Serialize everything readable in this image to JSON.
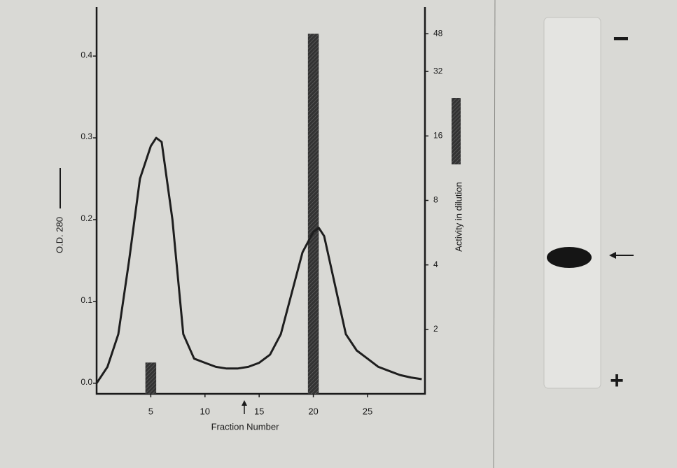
{
  "chart_data": {
    "type": "line",
    "y_label": "O.D. 280",
    "y2_label": "Activity in dilution",
    "x_label": "Fraction Number",
    "xlim": [
      0,
      30.3
    ],
    "xticks": [
      5,
      10,
      15,
      20,
      25
    ],
    "ylim": [
      -0.013,
      0.46
    ],
    "yticks": [
      {
        "value": 0,
        "label": "0.0"
      },
      0.1,
      0.2,
      0.3,
      0.4
    ],
    "y2lim": [
      1,
      64
    ],
    "y2ticks": [
      2,
      4,
      8,
      16,
      32,
      48
    ],
    "y2scale": "log",
    "series": [
      {
        "name": "O.D. 280",
        "type": "line",
        "color": "#1e1e1e",
        "x": [
          0,
          1,
          2,
          3,
          4,
          5,
          5.5,
          6,
          7,
          8,
          9,
          10,
          11,
          12,
          13,
          14,
          15,
          16,
          17,
          18,
          19,
          20,
          20.5,
          21,
          22,
          23,
          24,
          25,
          26,
          27,
          28,
          29,
          30
        ],
        "values": [
          0.0,
          0.02,
          0.06,
          0.15,
          0.25,
          0.29,
          0.3,
          0.295,
          0.2,
          0.06,
          0.03,
          0.025,
          0.02,
          0.018,
          0.018,
          0.02,
          0.025,
          0.035,
          0.06,
          0.11,
          0.16,
          0.185,
          0.19,
          0.18,
          0.12,
          0.06,
          0.04,
          0.03,
          0.02,
          0.015,
          0.01,
          0.007,
          0.005
        ]
      },
      {
        "name": "Activity in dilution",
        "type": "bar",
        "axis": "y2",
        "color": "#333333",
        "x": [
          5,
          20
        ],
        "values": [
          1.4,
          48
        ]
      }
    ]
  },
  "gel_labels": [
    "−",
    "+"
  ]
}
